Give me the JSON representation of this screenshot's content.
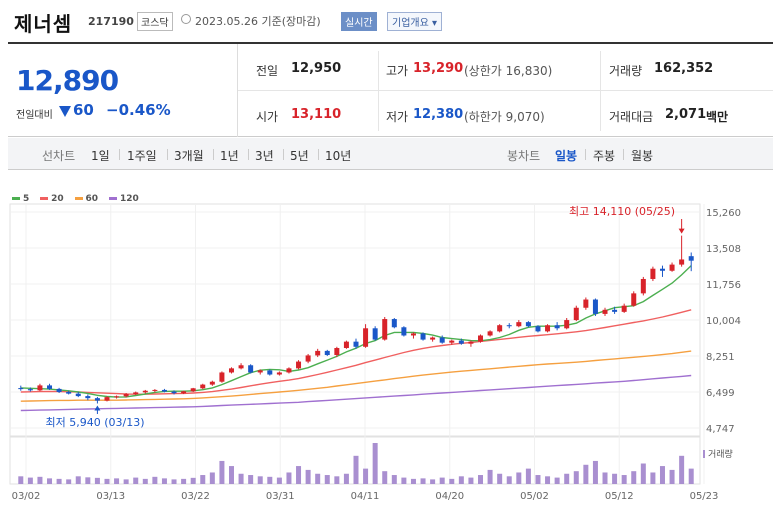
{
  "header": {
    "name": "제너셈",
    "code": "217190",
    "market": "코스닥",
    "date": "2023.05.26 기준(장마감)",
    "realtime_label": "실시간",
    "overview_label": "기업개요 ▾"
  },
  "summary": {
    "price": "12,890",
    "compare_label": "전일대비",
    "change": "60",
    "change_pct": "−0.46%",
    "prev_label": "전일",
    "prev_value": "12,950",
    "open_label": "시가",
    "open_value": "13,110",
    "high_label": "고가",
    "high_value": "13,290",
    "upper_limit": "(상한가 16,830)",
    "low_label": "저가",
    "low_value": "12,380",
    "lower_limit": "(하한가 9,070)",
    "volume_label": "거래량",
    "volume_value": "162,352",
    "amount_label": "거래대금",
    "amount_value": "2,071",
    "amount_unit": "백만"
  },
  "tabs": {
    "line_label": "선차트",
    "periods": [
      "1일",
      "1주일",
      "3개월",
      "1년",
      "3년",
      "5년",
      "10년"
    ],
    "candle_label": "봉차트",
    "candles": [
      "일봉",
      "주봉",
      "월봉"
    ],
    "selected_candle": "일봉"
  },
  "colors": {
    "up": "#d8232a",
    "down": "#1a57c8",
    "ma5": "#4caf50",
    "ma20": "#f06060",
    "ma60": "#f5a040",
    "ma120": "#a070d0",
    "volume": "#a98fd0"
  },
  "chart_data": {
    "type": "candlestick",
    "legend": [
      "5",
      "20",
      "60",
      "120"
    ],
    "y_ticks": [
      "15,260",
      "13,508",
      "11,756",
      "10,004",
      "8,251",
      "6,499",
      "4,747"
    ],
    "ylim": [
      4747,
      15260
    ],
    "x_ticks": [
      "03/02",
      "03/13",
      "03/22",
      "03/31",
      "04/11",
      "04/20",
      "05/02",
      "05/12",
      "05/23"
    ],
    "max_label": "최고 14,110 (05/25)",
    "min_label": "최저 5,940 (03/13)",
    "volume_label": "거래량",
    "candles": [
      [
        6690,
        6810,
        6560,
        6640
      ],
      [
        6640,
        6720,
        6520,
        6580
      ],
      [
        6580,
        6900,
        6540,
        6820
      ],
      [
        6820,
        6900,
        6600,
        6650
      ],
      [
        6650,
        6700,
        6450,
        6500
      ],
      [
        6500,
        6560,
        6380,
        6420
      ],
      [
        6420,
        6500,
        6250,
        6300
      ],
      [
        6300,
        6380,
        6100,
        6200
      ],
      [
        6200,
        6260,
        5940,
        6080
      ],
      [
        6080,
        6300,
        6040,
        6250
      ],
      [
        6250,
        6330,
        6180,
        6290
      ],
      [
        6290,
        6450,
        6230,
        6400
      ],
      [
        6400,
        6520,
        6350,
        6480
      ],
      [
        6480,
        6600,
        6420,
        6560
      ],
      [
        6560,
        6640,
        6480,
        6600
      ],
      [
        6600,
        6650,
        6480,
        6520
      ],
      [
        6520,
        6580,
        6380,
        6440
      ],
      [
        6440,
        6560,
        6400,
        6530
      ],
      [
        6530,
        6700,
        6500,
        6680
      ],
      [
        6680,
        6900,
        6640,
        6860
      ],
      [
        6860,
        7050,
        6800,
        7000
      ],
      [
        7000,
        7500,
        6950,
        7450
      ],
      [
        7450,
        7700,
        7400,
        7650
      ],
      [
        7650,
        7900,
        7600,
        7800
      ],
      [
        7800,
        7850,
        7400,
        7450
      ],
      [
        7450,
        7600,
        7350,
        7550
      ],
      [
        7550,
        7600,
        7300,
        7350
      ],
      [
        7350,
        7500,
        7300,
        7450
      ],
      [
        7450,
        7700,
        7400,
        7650
      ],
      [
        7650,
        8050,
        7600,
        7980
      ],
      [
        7980,
        8350,
        7900,
        8280
      ],
      [
        8280,
        8600,
        8200,
        8500
      ],
      [
        8500,
        8550,
        8250,
        8300
      ],
      [
        8300,
        8700,
        8200,
        8640
      ],
      [
        8640,
        9000,
        8600,
        8950
      ],
      [
        8950,
        9100,
        8600,
        8700
      ],
      [
        8700,
        9800,
        8650,
        9600
      ],
      [
        9600,
        9700,
        9000,
        9050
      ],
      [
        9050,
        10150,
        9000,
        10050
      ],
      [
        10050,
        10100,
        9600,
        9650
      ],
      [
        9650,
        9700,
        9200,
        9250
      ],
      [
        9250,
        9400,
        9100,
        9350
      ],
      [
        9350,
        9400,
        9000,
        9050
      ],
      [
        9050,
        9200,
        8950,
        9150
      ],
      [
        9150,
        9250,
        8850,
        8900
      ],
      [
        8900,
        9050,
        8800,
        9000
      ],
      [
        9000,
        9100,
        8800,
        8850
      ],
      [
        8850,
        9000,
        8700,
        8950
      ],
      [
        8950,
        9300,
        8900,
        9250
      ],
      [
        9250,
        9500,
        9200,
        9450
      ],
      [
        9450,
        9800,
        9400,
        9750
      ],
      [
        9750,
        9850,
        9600,
        9700
      ],
      [
        9700,
        10000,
        9650,
        9900
      ],
      [
        9900,
        9950,
        9650,
        9700
      ],
      [
        9700,
        9750,
        9400,
        9450
      ],
      [
        9450,
        9800,
        9400,
        9750
      ],
      [
        9750,
        9900,
        9500,
        9600
      ],
      [
        9600,
        10100,
        9550,
        10000
      ],
      [
        10000,
        10700,
        9950,
        10600
      ],
      [
        10600,
        11100,
        10500,
        11000
      ],
      [
        11000,
        11050,
        10200,
        10300
      ],
      [
        10300,
        10600,
        10200,
        10500
      ],
      [
        10500,
        10650,
        10300,
        10400
      ],
      [
        10400,
        10800,
        10350,
        10700
      ],
      [
        10700,
        11400,
        10650,
        11300
      ],
      [
        11300,
        12100,
        11200,
        12000
      ],
      [
        12000,
        12600,
        11900,
        12500
      ],
      [
        12500,
        12650,
        12100,
        12400
      ],
      [
        12400,
        12800,
        12350,
        12700
      ],
      [
        12700,
        14110,
        12600,
        12950
      ],
      [
        13110,
        13290,
        12380,
        12890
      ]
    ],
    "ma5": [
      6700,
      6680,
      6660,
      6640,
      6600,
      6560,
      6500,
      6430,
      6340,
      6280,
      6250,
      6260,
      6330,
      6400,
      6480,
      6530,
      6540,
      6540,
      6560,
      6610,
      6700,
      6860,
      7050,
      7250,
      7440,
      7560,
      7600,
      7580,
      7500,
      7570,
      7680,
      7870,
      8050,
      8230,
      8450,
      8630,
      8860,
      9000,
      9250,
      9400,
      9400,
      9400,
      9350,
      9270,
      9150,
      9100,
      9050,
      9000,
      8990,
      9050,
      9150,
      9300,
      9500,
      9650,
      9700,
      9700,
      9700,
      9750,
      9850,
      10100,
      10300,
      10450,
      10600,
      10650,
      10700,
      10900,
      11200,
      11500,
      11800,
      12200,
      12650
    ],
    "ma20": [
      6500,
      6510,
      6520,
      6530,
      6520,
      6510,
      6500,
      6480,
      6460,
      6440,
      6420,
      6400,
      6390,
      6390,
      6400,
      6410,
      6420,
      6430,
      6450,
      6480,
      6520,
      6580,
      6640,
      6720,
      6800,
      6880,
      6950,
      7020,
      7080,
      7150,
      7250,
      7350,
      7460,
      7570,
      7680,
      7800,
      7930,
      8050,
      8180,
      8300,
      8420,
      8530,
      8620,
      8700,
      8760,
      8820,
      8870,
      8910,
      8960,
      9010,
      9060,
      9110,
      9160,
      9210,
      9250,
      9290,
      9330,
      9380,
      9430,
      9490,
      9560,
      9640,
      9720,
      9800,
      9880,
      9960,
      10050,
      10150,
      10260,
      10380,
      10500
    ],
    "ma60": [
      6050,
      6060,
      6070,
      6080,
      6090,
      6090,
      6100,
      6100,
      6100,
      6100,
      6100,
      6110,
      6120,
      6130,
      6140,
      6150,
      6160,
      6170,
      6190,
      6210,
      6240,
      6270,
      6300,
      6340,
      6380,
      6420,
      6460,
      6500,
      6540,
      6580,
      6630,
      6680,
      6730,
      6790,
      6850,
      6910,
      6970,
      7030,
      7090,
      7150,
      7210,
      7270,
      7320,
      7370,
      7420,
      7470,
      7510,
      7550,
      7590,
      7630,
      7670,
      7710,
      7750,
      7790,
      7830,
      7860,
      7890,
      7920,
      7950,
      7990,
      8030,
      8070,
      8110,
      8150,
      8190,
      8230,
      8270,
      8320,
      8370,
      8430,
      8490
    ],
    "ma120": [
      5600,
      5610,
      5620,
      5630,
      5640,
      5650,
      5660,
      5670,
      5680,
      5690,
      5700,
      5710,
      5720,
      5730,
      5740,
      5750,
      5760,
      5770,
      5780,
      5800,
      5820,
      5840,
      5860,
      5880,
      5900,
      5920,
      5940,
      5960,
      5980,
      6000,
      6030,
      6060,
      6090,
      6120,
      6150,
      6180,
      6210,
      6240,
      6270,
      6300,
      6330,
      6360,
      6390,
      6420,
      6450,
      6480,
      6510,
      6540,
      6570,
      6600,
      6630,
      6660,
      6690,
      6720,
      6750,
      6780,
      6810,
      6840,
      6870,
      6900,
      6930,
      6960,
      6990,
      7020,
      7060,
      7100,
      7140,
      7180,
      7220,
      7260,
      7300
    ],
    "volumes": [
      30,
      25,
      28,
      22,
      20,
      18,
      30,
      26,
      24,
      20,
      22,
      18,
      25,
      20,
      28,
      22,
      18,
      20,
      24,
      35,
      45,
      90,
      70,
      40,
      35,
      30,
      28,
      25,
      45,
      70,
      55,
      40,
      35,
      30,
      40,
      110,
      60,
      160,
      50,
      35,
      25,
      20,
      22,
      18,
      25,
      20,
      30,
      25,
      35,
      55,
      40,
      30,
      45,
      60,
      35,
      30,
      25,
      40,
      50,
      75,
      90,
      45,
      40,
      35,
      50,
      80,
      45,
      70,
      55,
      110,
      60
    ]
  }
}
